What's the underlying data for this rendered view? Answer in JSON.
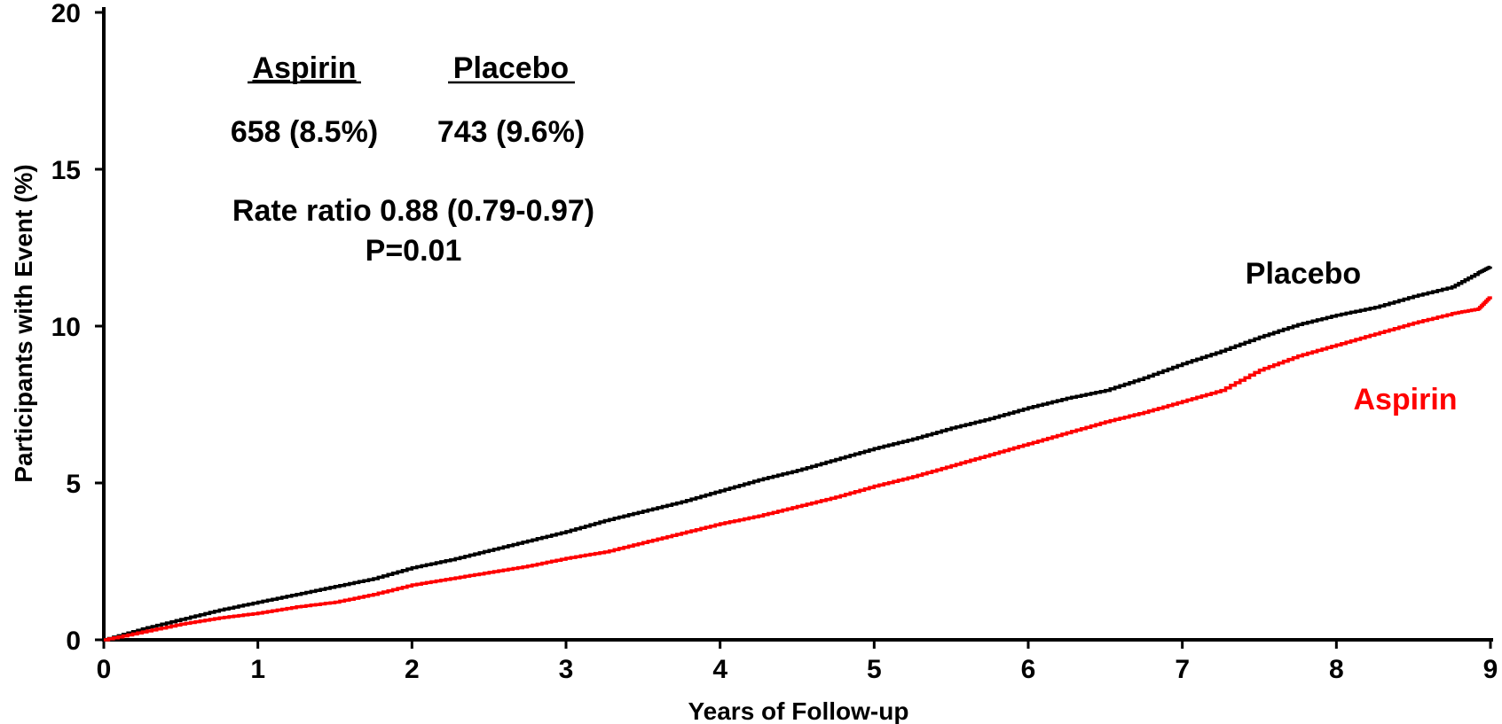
{
  "chart_data": {
    "type": "line",
    "title": "",
    "xlabel": "Years of Follow-up",
    "ylabel": "Participants with Event (%)",
    "xlim": [
      0,
      9
    ],
    "ylim": [
      0,
      20
    ],
    "x_ticks": [
      "0",
      "1",
      "2",
      "3",
      "4",
      "5",
      "6",
      "7",
      "8",
      "9"
    ],
    "y_ticks": [
      "0",
      "5",
      "10",
      "15",
      "20"
    ],
    "grid": false,
    "annotations": {
      "header_aspirin": "Aspirin",
      "header_placebo": "Placebo",
      "count_aspirin": "658 (8.5%)",
      "count_placebo": "743 (9.6%)",
      "rate_ratio": "Rate ratio 0.88 (0.79-0.97)",
      "p_value": "P=0.01"
    },
    "series": [
      {
        "name": "Placebo",
        "color": "#000000",
        "x": [
          0,
          0.25,
          0.5,
          0.75,
          1.0,
          1.25,
          1.5,
          1.75,
          2.0,
          2.25,
          2.5,
          2.75,
          3.0,
          3.25,
          3.5,
          3.75,
          4.0,
          4.25,
          4.5,
          4.75,
          5.0,
          5.25,
          5.5,
          5.75,
          6.0,
          6.25,
          6.5,
          6.75,
          7.0,
          7.25,
          7.5,
          7.75,
          8.0,
          8.25,
          8.5,
          8.75,
          8.92,
          9.0
        ],
        "values": [
          0,
          0.35,
          0.65,
          0.95,
          1.2,
          1.45,
          1.7,
          1.95,
          2.3,
          2.55,
          2.85,
          3.15,
          3.45,
          3.8,
          4.1,
          4.4,
          4.75,
          5.1,
          5.4,
          5.75,
          6.1,
          6.4,
          6.75,
          7.05,
          7.4,
          7.7,
          7.95,
          8.35,
          8.8,
          9.2,
          9.65,
          10.05,
          10.35,
          10.6,
          10.95,
          11.25,
          11.7,
          11.9
        ]
      },
      {
        "name": "Aspirin",
        "color": "#ff0000",
        "x": [
          0,
          0.25,
          0.5,
          0.75,
          1.0,
          1.25,
          1.5,
          1.75,
          2.0,
          2.25,
          2.5,
          2.75,
          3.0,
          3.25,
          3.5,
          3.75,
          4.0,
          4.25,
          4.5,
          4.75,
          5.0,
          5.25,
          5.5,
          5.75,
          6.0,
          6.25,
          6.5,
          6.75,
          7.0,
          7.25,
          7.5,
          7.75,
          8.0,
          8.25,
          8.5,
          8.75,
          8.92,
          9.0
        ],
        "values": [
          0,
          0.25,
          0.5,
          0.7,
          0.85,
          1.05,
          1.2,
          1.45,
          1.75,
          1.95,
          2.15,
          2.35,
          2.6,
          2.8,
          3.1,
          3.4,
          3.7,
          3.95,
          4.25,
          4.55,
          4.9,
          5.2,
          5.55,
          5.9,
          6.25,
          6.6,
          6.95,
          7.25,
          7.6,
          7.95,
          8.6,
          9.05,
          9.4,
          9.75,
          10.1,
          10.4,
          10.55,
          10.95
        ]
      }
    ],
    "series_labels": {
      "placebo": "Placebo",
      "aspirin": "Aspirin"
    }
  }
}
